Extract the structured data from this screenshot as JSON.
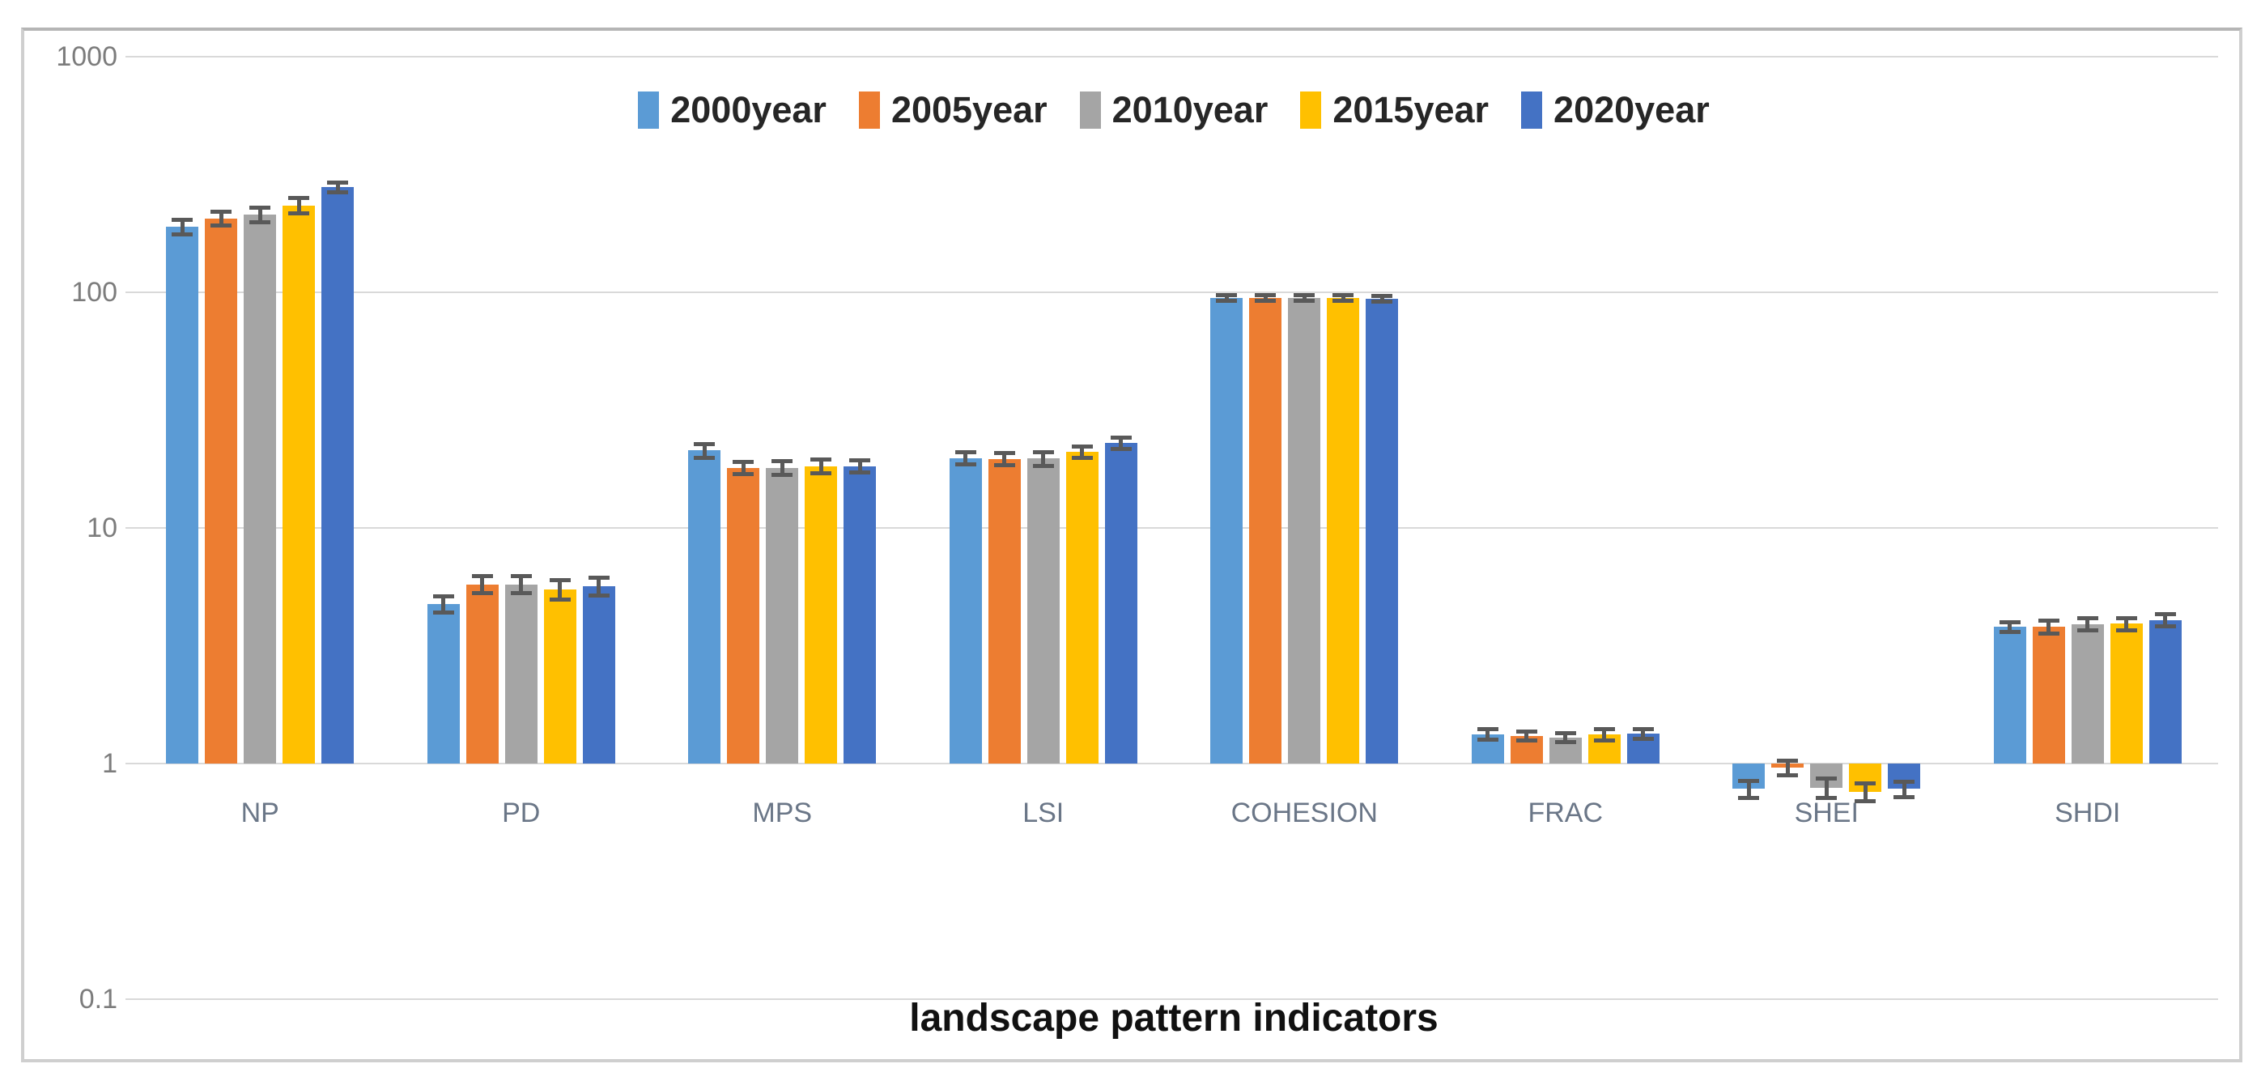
{
  "chart_data": {
    "type": "bar",
    "scale": "log",
    "title": "",
    "xlabel": "landscape pattern indicators",
    "ylabel": "",
    "ylim": [
      0.1,
      1000
    ],
    "y_ticks": [
      1000,
      100,
      10,
      1,
      0.1
    ],
    "baseline": 1,
    "grid": true,
    "legend_position": "top-center",
    "error_bars": true,
    "categories": [
      "NP",
      "PD",
      "MPS",
      "LSI",
      "COHESION",
      "FRAC",
      "SHEI",
      "SHDI"
    ],
    "series": [
      {
        "name": "2000year",
        "color": "#5B9BD5",
        "values": [
          190,
          4.75,
          21.3,
          19.8,
          94.5,
          1.33,
          0.78,
          3.8
        ],
        "errors": [
          14,
          0.4,
          1.5,
          1.3,
          3.0,
          0.07,
          0.07,
          0.2
        ]
      },
      {
        "name": "2005year",
        "color": "#ED7D31",
        "values": [
          206,
          5.75,
          18.0,
          19.6,
          94.6,
          1.31,
          0.96,
          3.8
        ],
        "errors": [
          14,
          0.5,
          1.2,
          1.2,
          3.0,
          0.06,
          0.07,
          0.25
        ]
      },
      {
        "name": "2010year",
        "color": "#A5A5A5",
        "values": [
          213,
          5.75,
          18.0,
          19.7,
          94.6,
          1.29,
          0.79,
          3.9
        ],
        "errors": [
          16,
          0.5,
          1.3,
          1.4,
          3.0,
          0.06,
          0.08,
          0.25
        ]
      },
      {
        "name": "2015year",
        "color": "#FFC000",
        "values": [
          234,
          5.5,
          18.3,
          21.0,
          94.6,
          1.33,
          0.76,
          3.92
        ],
        "errors": [
          18,
          0.55,
          1.3,
          1.3,
          3.0,
          0.08,
          0.07,
          0.25
        ]
      },
      {
        "name": "2020year",
        "color": "#4472C4",
        "values": [
          279,
          5.65,
          18.3,
          22.9,
          94.2,
          1.34,
          0.78,
          4.07
        ],
        "errors": [
          14,
          0.5,
          1.2,
          1.4,
          3.0,
          0.07,
          0.06,
          0.25
        ]
      }
    ]
  },
  "style": {
    "gridline_color": "#d9d9d9",
    "error_bar_color": "#595959",
    "tick_label_color": "#7c7c7c",
    "category_label_color": "#6a7687"
  }
}
